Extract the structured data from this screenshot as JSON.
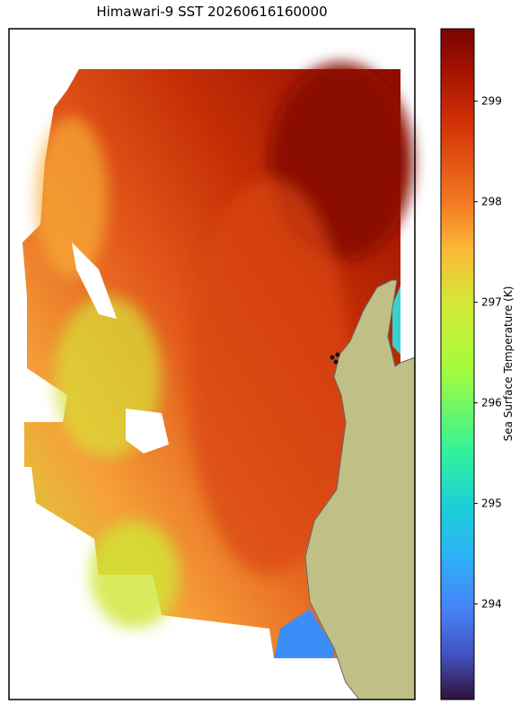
{
  "title": "Himawari-9 SST 20260616160000",
  "colorbar": {
    "label": "Sea Surface Temperature (K)",
    "lim": [
      293.05,
      299.72
    ],
    "ticks": [
      294,
      295,
      296,
      297,
      298,
      299
    ]
  }
}
